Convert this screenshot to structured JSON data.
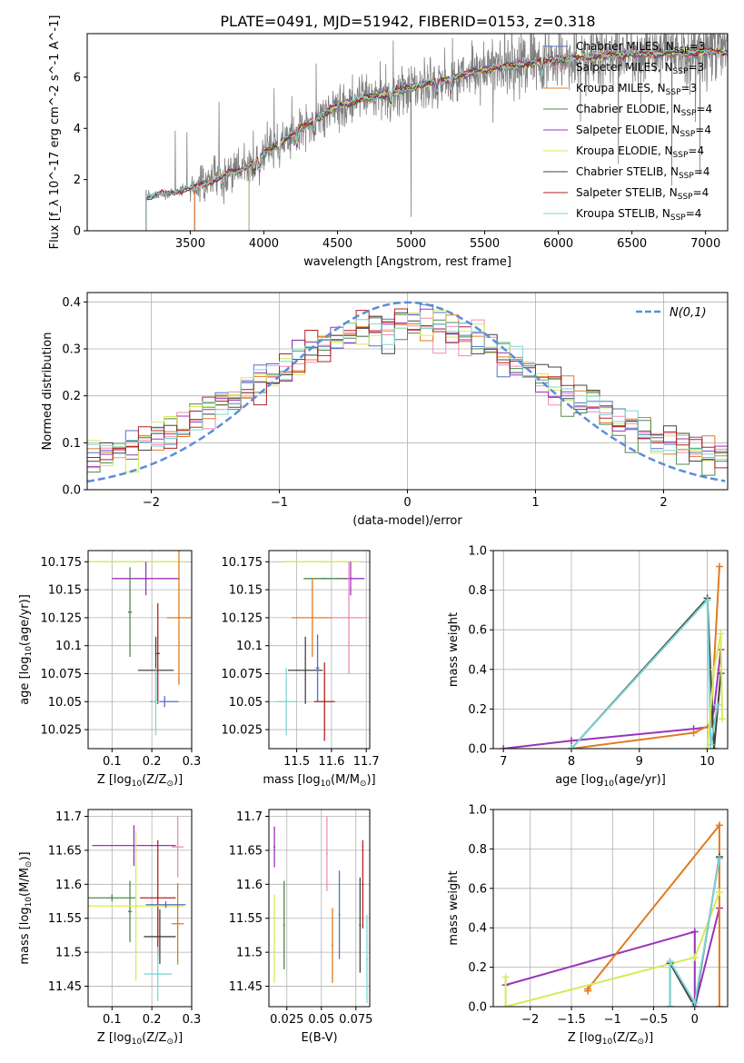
{
  "figure_title": "PLATE=0491, MJD=51942, FIBERID=0153, z=0.318",
  "colors": {
    "Chabrier MILES": "#5470c6",
    "Salpeter MILES": "#f08cb4",
    "Kroupa MILES": "#e07b22",
    "Chabrier ELODIE": "#4f8a4f",
    "Salpeter ELODIE": "#9933bb",
    "Kroupa ELODIE": "#d6ea5a",
    "Chabrier STELIB": "#444444",
    "Salpeter STELIB": "#b22222",
    "Kroupa STELIB": "#7fd6d6",
    "data": "#808080",
    "gaussian": "#5b8dd9"
  },
  "chart_data": [
    {
      "id": "spectrum",
      "type": "line",
      "xlabel": "wavelength [Angstrom, rest frame]",
      "ylabel": "Flux [f_λ 10^-17 erg cm^-2 s^-1 A^-1]",
      "xlim": [
        2800,
        7150
      ],
      "ylim": [
        0,
        7.7
      ],
      "xticks": [
        3500,
        4000,
        4500,
        5000,
        5500,
        6000,
        6500,
        7000
      ],
      "yticks": [
        0,
        2,
        4,
        6
      ],
      "grid": false,
      "legend_position": "top-right",
      "legend": [
        {
          "label": "Chabrier MILES, N_SSP=3"
        },
        {
          "label": "Salpeter MILES, N_SSP=3"
        },
        {
          "label": "Kroupa MILES, N_SSP=3"
        },
        {
          "label": "Chabrier ELODIE, N_SSP=4"
        },
        {
          "label": "Salpeter ELODIE, N_SSP=4"
        },
        {
          "label": "Kroupa ELODIE, N_SSP=4"
        },
        {
          "label": "Chabrier STELIB, N_SSP=4"
        },
        {
          "label": "Salpeter STELIB, N_SSP=4"
        },
        {
          "label": "Kroupa STELIB, N_SSP=4"
        }
      ],
      "data_range": [
        3200,
        7150
      ],
      "elodie_start": 3900,
      "miles_start": 3530,
      "continuum": [
        [
          3200,
          1.6
        ],
        [
          3550,
          1.9
        ],
        [
          3900,
          2.6
        ],
        [
          4200,
          3.8
        ],
        [
          4500,
          4.9
        ],
        [
          5000,
          5.6
        ],
        [
          5500,
          6.3
        ],
        [
          6000,
          6.7
        ],
        [
          6500,
          6.9
        ],
        [
          7100,
          7.0
        ]
      ]
    },
    {
      "id": "residuals",
      "type": "line",
      "xlabel": "(data-model)/error",
      "ylabel": "Normed distribution",
      "xlim": [
        -2.5,
        2.5
      ],
      "ylim": [
        0,
        0.42
      ],
      "xticks": [
        -2,
        -1,
        0,
        1,
        2
      ],
      "yticks": [
        0.0,
        0.1,
        0.2,
        0.3,
        0.4
      ],
      "grid": true,
      "legend_position": "top-right",
      "legend": [
        {
          "label": "N(0,1)"
        }
      ]
    },
    {
      "id": "age_vs_Z",
      "type": "scatter",
      "xlabel": "Z [log10(Z/Z⊙)]",
      "ylabel": "age [log10(age/yr)]",
      "xlim": [
        0.04,
        0.3
      ],
      "ylim": [
        10.008,
        10.185
      ],
      "xticks": [
        0.1,
        0.2,
        0.3
      ],
      "yticks": [
        10.025,
        10.05,
        10.075,
        10.1,
        10.125,
        10.15,
        10.175
      ],
      "grid": true,
      "points": [
        {
          "model": "Kroupa ELODIE",
          "x": 0.16,
          "y": 10.175,
          "xerr": 0.12,
          "yerr": 0.0
        },
        {
          "model": "Salpeter ELODIE",
          "x": 0.185,
          "y": 10.16,
          "xerr": 0.085,
          "yerr": 0.015
        },
        {
          "model": "Chabrier ELODIE",
          "x": 0.145,
          "y": 10.13,
          "xerr": 0.005,
          "yerr": 0.04
        },
        {
          "model": "Kroupa MILES",
          "x": 0.268,
          "y": 10.125,
          "xerr": 0.03,
          "yerr": 0.06
        },
        {
          "model": "Chabrier STELIB",
          "x": 0.21,
          "y": 10.078,
          "xerr": 0.045,
          "yerr": 0.03
        },
        {
          "model": "Salpeter STELIB",
          "x": 0.215,
          "y": 10.093,
          "xerr": 0.005,
          "yerr": 0.045
        },
        {
          "model": "Chabrier MILES",
          "x": 0.232,
          "y": 10.05,
          "xerr": 0.035,
          "yerr": 0.005
        },
        {
          "model": "Kroupa STELIB",
          "x": 0.21,
          "y": 10.05,
          "xerr": 0.01,
          "yerr": 0.03
        }
      ]
    },
    {
      "id": "age_vs_mass",
      "type": "scatter",
      "xlabel": "mass [log10(M/M⊙)]",
      "ylabel": "",
      "xlim": [
        11.42,
        11.71
      ],
      "ylim": [
        10.008,
        10.185
      ],
      "xticks": [
        11.5,
        11.6,
        11.7
      ],
      "yticks": [
        10.025,
        10.05,
        10.075,
        10.1,
        10.125,
        10.15,
        10.175
      ],
      "grid": true,
      "points": [
        {
          "model": "Kroupa ELODIE",
          "x": 11.57,
          "y": 10.175,
          "xerr": 0.11,
          "yerr": 0.0
        },
        {
          "model": "Salpeter ELODIE",
          "x": 11.655,
          "y": 10.16,
          "xerr": 0.04,
          "yerr": 0.015
        },
        {
          "model": "Chabrier ELODIE",
          "x": 11.58,
          "y": 10.16,
          "xerr": 0.06,
          "yerr": 0.0
        },
        {
          "model": "Kroupa MILES",
          "x": 11.545,
          "y": 10.125,
          "xerr": 0.06,
          "yerr": 0.035
        },
        {
          "model": "Salpeter MILES",
          "x": 11.65,
          "y": 10.125,
          "xerr": 0.05,
          "yerr": 0.05
        },
        {
          "model": "Chabrier STELIB",
          "x": 11.525,
          "y": 10.078,
          "xerr": 0.05,
          "yerr": 0.03
        },
        {
          "model": "Chabrier MILES",
          "x": 11.56,
          "y": 10.08,
          "xerr": 0.005,
          "yerr": 0.03
        },
        {
          "model": "Kroupa STELIB",
          "x": 11.47,
          "y": 10.05,
          "xerr": 0.03,
          "yerr": 0.03
        },
        {
          "model": "Salpeter STELIB",
          "x": 11.58,
          "y": 10.05,
          "xerr": 0.03,
          "yerr": 0.035
        }
      ]
    },
    {
      "id": "mass_weight_vs_age",
      "type": "line",
      "xlabel": "age [log10(age/yr)]",
      "ylabel": "mass weight",
      "xlim": [
        6.85,
        10.3
      ],
      "ylim": [
        0,
        1.0
      ],
      "xticks": [
        7,
        8,
        9,
        10
      ],
      "yticks": [
        0.0,
        0.2,
        0.4,
        0.6,
        0.8,
        1.0
      ],
      "grid": true,
      "series": [
        {
          "model": "Salpeter ELODIE",
          "points": [
            [
              7.0,
              0.0
            ],
            [
              8.0,
              0.04
            ],
            [
              9.8,
              0.1
            ],
            [
              10.05,
              0.11
            ],
            [
              10.1,
              0.2
            ],
            [
              10.2,
              0.5
            ]
          ]
        },
        {
          "model": "Kroupa MILES",
          "points": [
            [
              8.0,
              0.0
            ],
            [
              9.8,
              0.08
            ],
            [
              10.05,
              0.12
            ],
            [
              10.18,
              0.92
            ]
          ]
        },
        {
          "model": "Chabrier STELIB",
          "points": [
            [
              8.0,
              0.0
            ],
            [
              10.0,
              0.76
            ],
            [
              10.1,
              0.0
            ],
            [
              10.2,
              0.38
            ]
          ]
        },
        {
          "model": "Kroupa STELIB",
          "points": [
            [
              8.0,
              0.0
            ],
            [
              10.0,
              0.75
            ],
            [
              10.05,
              0.02
            ],
            [
              10.15,
              0.22
            ]
          ]
        },
        {
          "model": "Kroupa ELODIE",
          "points": [
            [
              10.0,
              0.0
            ],
            [
              10.1,
              0.4
            ],
            [
              10.2,
              0.58
            ],
            [
              10.22,
              0.15
            ]
          ]
        }
      ]
    },
    {
      "id": "mass_vs_Z",
      "type": "scatter",
      "xlabel": "Z [log10(Z/Z⊙)]",
      "ylabel": "mass [log10(M/M⊙)]",
      "xlim": [
        0.04,
        0.3
      ],
      "ylim": [
        11.42,
        11.71
      ],
      "xticks": [
        0.1,
        0.2,
        0.3
      ],
      "yticks": [
        11.45,
        11.5,
        11.55,
        11.6,
        11.65,
        11.7
      ],
      "grid": true,
      "points": [
        {
          "model": "Salpeter ELODIE",
          "x": 0.155,
          "y": 11.657,
          "xerr": 0.105,
          "yerr": 0.03
        },
        {
          "model": "Salpeter MILES",
          "x": 0.265,
          "y": 11.655,
          "xerr": 0.015,
          "yerr": 0.045
        },
        {
          "model": "Chabrier ELODIE",
          "x": 0.1,
          "y": 11.58,
          "xerr": 0.06,
          "yerr": 0.005
        },
        {
          "model": "Chabrier ELODIE",
          "x": 0.145,
          "y": 11.56,
          "xerr": 0.005,
          "yerr": 0.045
        },
        {
          "model": "Salpeter STELIB",
          "x": 0.215,
          "y": 11.58,
          "xerr": 0.045,
          "yerr": 0.085
        },
        {
          "model": "Kroupa ELODIE",
          "x": 0.16,
          "y": 11.568,
          "xerr": 0.12,
          "yerr": 0.11
        },
        {
          "model": "Chabrier STELIB",
          "x": 0.22,
          "y": 11.523,
          "xerr": 0.04,
          "yerr": 0.04
        },
        {
          "model": "Kroupa MILES",
          "x": 0.265,
          "y": 11.542,
          "xerr": 0.015,
          "yerr": 0.06
        },
        {
          "model": "Chabrier MILES",
          "x": 0.235,
          "y": 11.57,
          "xerr": 0.05,
          "yerr": 0.005
        },
        {
          "model": "Kroupa STELIB",
          "x": 0.215,
          "y": 11.468,
          "xerr": 0.035,
          "yerr": 0.04
        }
      ]
    },
    {
      "id": "mass_vs_ebv",
      "type": "scatter",
      "xlabel": "E(B-V)",
      "ylabel": "",
      "xlim": [
        0.012,
        0.085
      ],
      "ylim": [
        11.42,
        11.71
      ],
      "xticks": [
        0.025,
        0.05,
        0.075
      ],
      "yticks": [
        11.45,
        11.5,
        11.55,
        11.6,
        11.65,
        11.7
      ],
      "grid": true,
      "points": [
        {
          "model": "Salpeter ELODIE",
          "x": 0.016,
          "y": 11.655,
          "xerr": 0.0,
          "yerr": 0.03
        },
        {
          "model": "Kroupa ELODIE",
          "x": 0.016,
          "y": 11.52,
          "xerr": 0.0,
          "yerr": 0.065
        },
        {
          "model": "Chabrier ELODIE",
          "x": 0.023,
          "y": 11.54,
          "xerr": 0.0,
          "yerr": 0.065
        },
        {
          "model": "Salpeter MILES",
          "x": 0.054,
          "y": 11.645,
          "xerr": 0.0,
          "yerr": 0.055
        },
        {
          "model": "Kroupa MILES",
          "x": 0.058,
          "y": 11.51,
          "xerr": 0.0,
          "yerr": 0.055
        },
        {
          "model": "Chabrier MILES",
          "x": 0.063,
          "y": 11.555,
          "xerr": 0.0,
          "yerr": 0.065
        },
        {
          "model": "Chabrier STELIB",
          "x": 0.078,
          "y": 11.54,
          "xerr": 0.0,
          "yerr": 0.07
        },
        {
          "model": "Salpeter STELIB",
          "x": 0.08,
          "y": 11.6,
          "xerr": 0.0,
          "yerr": 0.065
        },
        {
          "model": "Kroupa STELIB",
          "x": 0.083,
          "y": 11.49,
          "xerr": 0.0,
          "yerr": 0.065
        }
      ]
    },
    {
      "id": "mass_weight_vs_Z",
      "type": "line",
      "xlabel": "Z [log10(Z/Z⊙)]",
      "ylabel": "mass weight",
      "xlim": [
        -2.45,
        0.4
      ],
      "ylim": [
        0,
        1.0
      ],
      "xticks": [
        -2.0,
        -1.5,
        -1.0,
        -0.5,
        0.0
      ],
      "yticks": [
        0.0,
        0.2,
        0.4,
        0.6,
        0.8,
        1.0
      ],
      "grid": true,
      "series": [
        {
          "model": "Salpeter ELODIE",
          "points": [
            [
              -2.3,
              0.11
            ],
            [
              0.0,
              0.38
            ],
            [
              0.0,
              0.0
            ],
            [
              0.3,
              0.5
            ]
          ]
        },
        {
          "model": "Kroupa MILES",
          "points": [
            [
              -1.3,
              0.08
            ],
            [
              -1.3,
              0.09
            ],
            [
              0.3,
              0.92
            ],
            [
              0.3,
              0.0
            ]
          ]
        },
        {
          "model": "Kroupa ELODIE",
          "points": [
            [
              -2.3,
              0.15
            ],
            [
              -2.3,
              0.0
            ],
            [
              0.0,
              0.25
            ],
            [
              0.3,
              0.58
            ]
          ]
        },
        {
          "model": "Chabrier STELIB",
          "points": [
            [
              -0.3,
              0.0
            ],
            [
              -0.3,
              0.22
            ],
            [
              0.0,
              0.0
            ],
            [
              0.3,
              0.76
            ]
          ]
        },
        {
          "model": "Kroupa STELIB",
          "points": [
            [
              -0.3,
              0.0
            ],
            [
              -0.3,
              0.23
            ],
            [
              0.0,
              0.02
            ],
            [
              0.3,
              0.75
            ]
          ]
        }
      ]
    }
  ]
}
